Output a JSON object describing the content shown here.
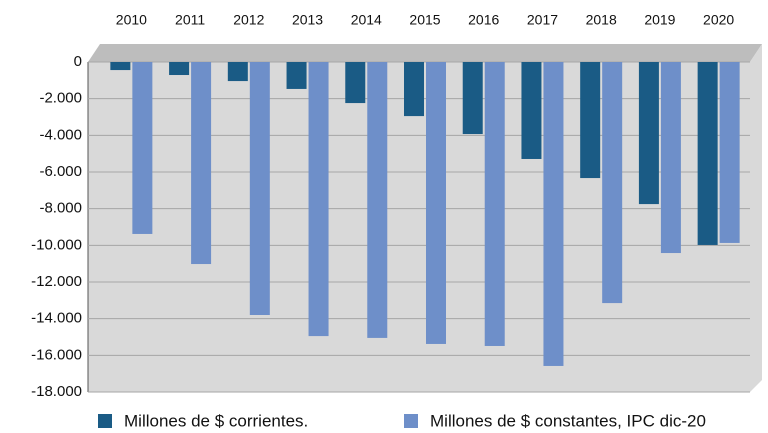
{
  "chart_data": {
    "type": "bar",
    "categories": [
      "2010",
      "2011",
      "2012",
      "2013",
      "2014",
      "2015",
      "2016",
      "2017",
      "2018",
      "2019",
      "2020"
    ],
    "series": [
      {
        "name": "Millones de $ corrientes.",
        "color": "#1a5b85",
        "values": [
          -440,
          -710,
          -1040,
          -1470,
          -2240,
          -2950,
          -3930,
          -5290,
          -6330,
          -7750,
          -9980
        ]
      },
      {
        "name": "Millones de $ constantes, IPC dic-20",
        "color": "#6e8fc9",
        "values": [
          -9380,
          -11020,
          -13800,
          -14950,
          -15050,
          -15380,
          -15490,
          -16580,
          -13150,
          -10420,
          -9870
        ]
      }
    ],
    "ylim": [
      -18000,
      0
    ],
    "yticks": [
      0,
      {
        "value": -2000,
        "label": "-2.000"
      },
      {
        "value": -4000,
        "label": "-4.000"
      },
      {
        "value": -6000,
        "label": "-6.000"
      },
      {
        "value": -8000,
        "label": "-8.000"
      },
      {
        "value": -10000,
        "label": "-10.000"
      },
      {
        "value": -12000,
        "label": "-12.000"
      },
      {
        "value": -14000,
        "label": "-14.000"
      },
      {
        "value": -16000,
        "label": "-16.000"
      },
      {
        "value": -18000,
        "label": "-18.000"
      }
    ],
    "grid": true,
    "legend": "bottom"
  }
}
